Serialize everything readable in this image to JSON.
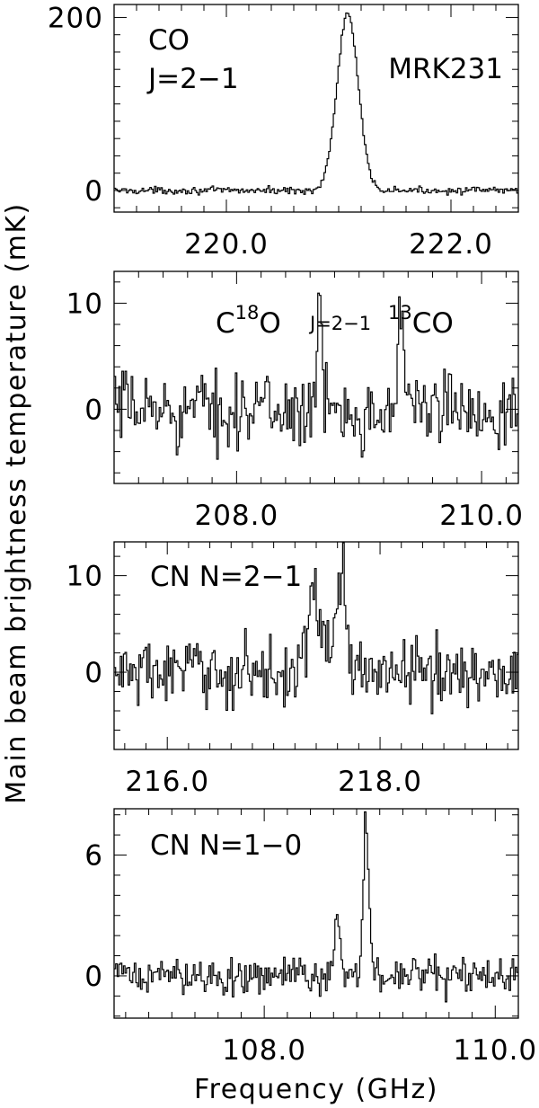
{
  "figure": {
    "ylabel": "Main beam brightness temperature (mK)",
    "xlabel": "Frequency (GHz)"
  },
  "chart_data": [
    {
      "type": "line",
      "xlim": [
        219.0,
        222.6
      ],
      "ylim": [
        -25,
        215
      ],
      "xticks": [
        220.0,
        222.0
      ],
      "yticks": [
        0,
        200
      ],
      "xtick_labels": [
        "220.0",
        "222.0"
      ],
      "ytick_labels": [
        "0",
        "200"
      ],
      "annotations": [
        {
          "text": "CO",
          "pos": "top-left"
        },
        {
          "text": "J=2−1",
          "pos": "top-left"
        },
        {
          "text": "MRK231",
          "pos": "top-right"
        }
      ],
      "lines": [
        {
          "center": 221.08,
          "peak": 205,
          "fwhm": 0.22
        }
      ],
      "noise_amplitude": 4,
      "x": [
        219.0,
        220.5,
        220.9,
        221.0,
        221.08,
        221.16,
        221.3,
        221.7,
        222.6
      ],
      "y": [
        0,
        2,
        30,
        150,
        205,
        150,
        30,
        4,
        0
      ]
    },
    {
      "type": "line",
      "xlim": [
        207.0,
        210.3
      ],
      "ylim": [
        -7,
        13
      ],
      "xticks": [
        208.0,
        210.0
      ],
      "yticks": [
        0,
        10
      ],
      "xtick_labels": [
        "208.0",
        "210.0"
      ],
      "ytick_labels": [
        "0",
        "10"
      ],
      "annotations": [
        {
          "text": "C",
          "sup": "18",
          "after": "O",
          "pos": "top-left"
        },
        {
          "text": "J=2−1",
          "pos": "top-center"
        },
        {
          "text": "",
          "sup": "13",
          "after": "CO",
          "pos": "top-right"
        }
      ],
      "lines": [
        {
          "center": 208.68,
          "peak": 8,
          "fwhm": 0.05
        },
        {
          "center": 209.35,
          "peak": 9,
          "fwhm": 0.06
        }
      ],
      "noise_amplitude": 3.5,
      "x": [
        207.0,
        208.0,
        208.68,
        209.0,
        209.35,
        210.3
      ],
      "y": [
        0,
        0,
        8,
        0,
        9,
        0
      ]
    },
    {
      "type": "line",
      "xlim": [
        215.5,
        219.3
      ],
      "ylim": [
        -8,
        13.5
      ],
      "xticks": [
        216.0,
        218.0
      ],
      "yticks": [
        0,
        10
      ],
      "xtick_labels": [
        "216.0",
        "218.0"
      ],
      "ytick_labels": [
        "0",
        "10"
      ],
      "annotations": [
        {
          "text": "CN  N=2−1",
          "pos": "top-left"
        }
      ],
      "lines": [
        {
          "center": 217.38,
          "peak": 7,
          "fwhm": 0.18
        },
        {
          "center": 217.63,
          "peak": 11,
          "fwhm": 0.1
        }
      ],
      "noise_amplitude": 3.5,
      "x": [
        215.5,
        217.0,
        217.38,
        217.63,
        218.0,
        219.3
      ],
      "y": [
        0,
        0,
        7,
        11,
        0,
        0
      ]
    },
    {
      "type": "line",
      "xlim": [
        106.7,
        110.2
      ],
      "ylim": [
        -2.1,
        8.3
      ],
      "xticks": [
        108.0,
        110.0
      ],
      "yticks": [
        0,
        6
      ],
      "xtick_labels": [
        "108.0",
        "110.0"
      ],
      "ytick_labels": [
        "0",
        "6"
      ],
      "annotations": [
        {
          "text": "CN  N=1−0",
          "pos": "top-left"
        }
      ],
      "lines": [
        {
          "center": 108.63,
          "peak": 3.2,
          "fwhm": 0.05
        },
        {
          "center": 108.88,
          "peak": 7.6,
          "fwhm": 0.06
        }
      ],
      "noise_amplitude": 0.9,
      "x": [
        106.7,
        108.0,
        108.63,
        108.88,
        109.2,
        110.2
      ],
      "y": [
        0,
        0,
        3.2,
        7.6,
        0,
        0
      ]
    }
  ]
}
